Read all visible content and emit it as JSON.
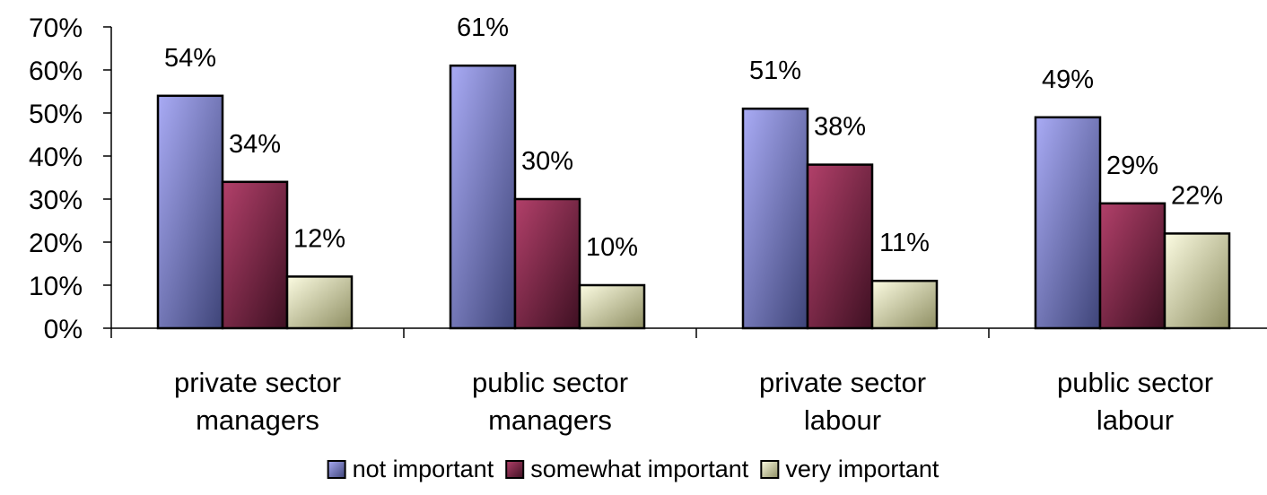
{
  "chart_data": {
    "type": "bar",
    "title": "",
    "xlabel": "",
    "ylabel": "",
    "ylim": [
      0,
      70
    ],
    "yticks": [
      "0%",
      "10%",
      "20%",
      "30%",
      "40%",
      "50%",
      "60%",
      "70%"
    ],
    "ytick_values": [
      0,
      10,
      20,
      30,
      40,
      50,
      60,
      70
    ],
    "categories": [
      [
        "private sector",
        "managers"
      ],
      [
        "public sector",
        "managers"
      ],
      [
        "private sector",
        "labour"
      ],
      [
        "public sector",
        "labour"
      ]
    ],
    "series": [
      {
        "name": "not important",
        "values": [
          54,
          61,
          51,
          49
        ],
        "labels": [
          "54%",
          "61%",
          "51%",
          "49%"
        ],
        "gradient": [
          "#a9abf5",
          "#3e4478"
        ]
      },
      {
        "name": "somewhat important",
        "values": [
          34,
          30,
          38,
          29
        ],
        "labels": [
          "34%",
          "30%",
          "38%",
          "29%"
        ],
        "gradient": [
          "#b2406a",
          "#3e1022"
        ]
      },
      {
        "name": "very important",
        "values": [
          12,
          10,
          11,
          22
        ],
        "labels": [
          "12%",
          "10%",
          "11%",
          "22%"
        ],
        "gradient": [
          "#fcfce2",
          "#8e8e62"
        ]
      }
    ],
    "grid": false,
    "legend_position": "bottom"
  }
}
